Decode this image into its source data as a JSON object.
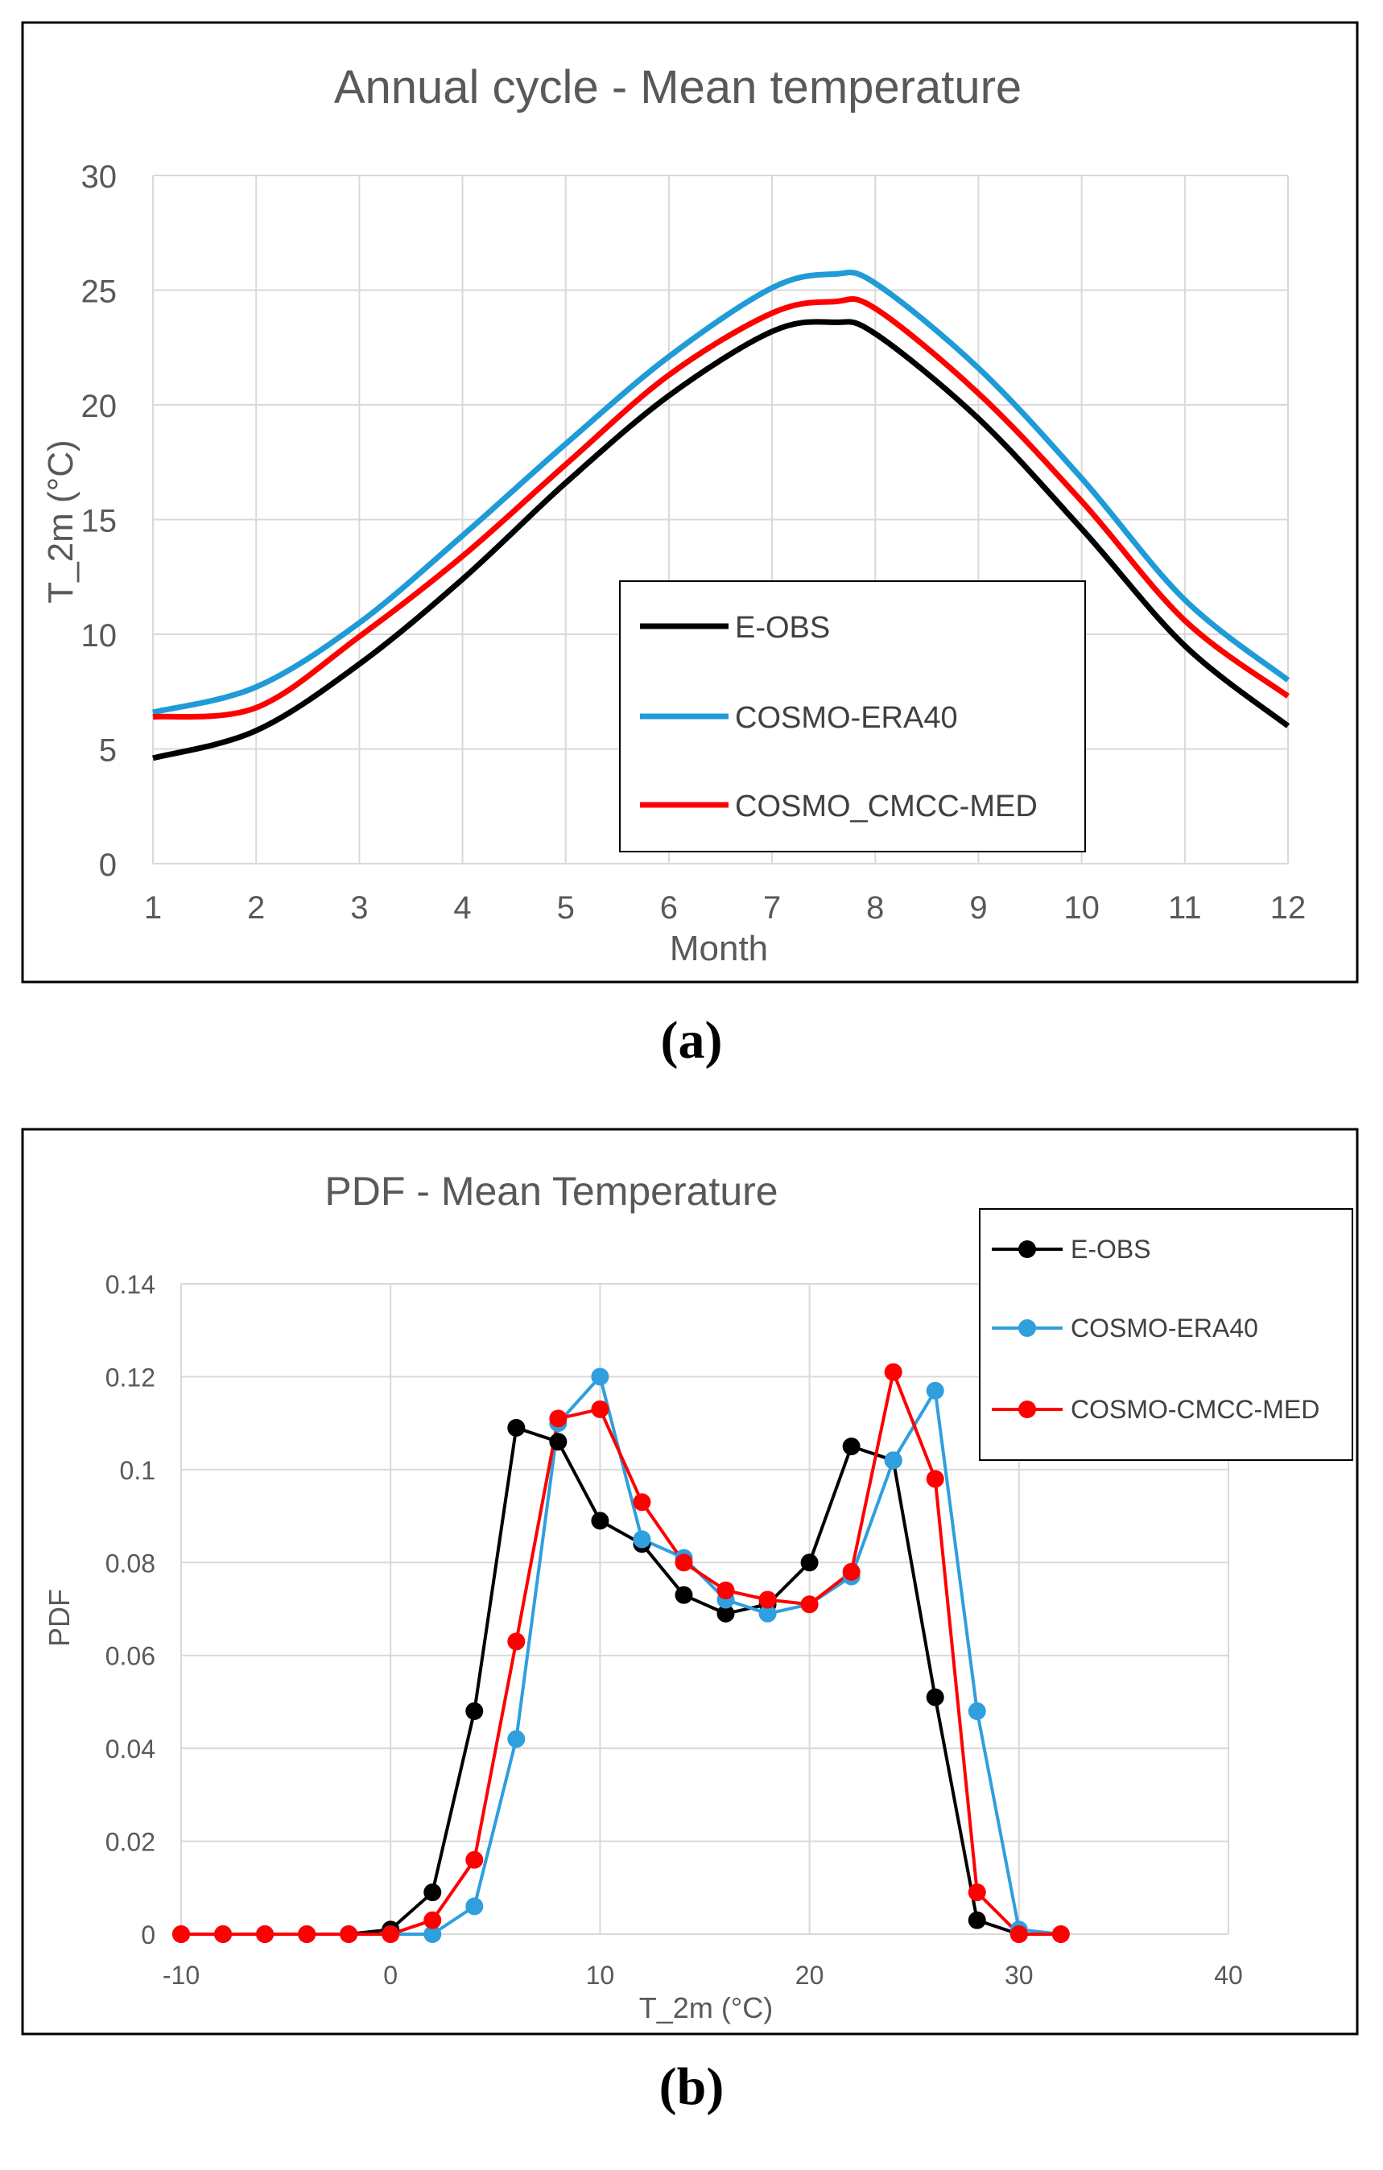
{
  "figure_labels": {
    "a": "(a)",
    "b": "(b)"
  },
  "chart_data": [
    {
      "id": "a",
      "type": "line",
      "title": "Annual cycle - Mean temperature",
      "xlabel": "Month",
      "ylabel": "T_2m (°C)",
      "xlim": [
        1,
        12
      ],
      "ylim": [
        0,
        30
      ],
      "xticks": [
        1,
        2,
        3,
        4,
        5,
        6,
        7,
        8,
        9,
        10,
        11,
        12
      ],
      "yticks": [
        0,
        5,
        10,
        15,
        20,
        25,
        30
      ],
      "grid": true,
      "legend_position": "bottom-right",
      "x": [
        1,
        2,
        3,
        4,
        5,
        6,
        7,
        7.6,
        8,
        9,
        10,
        11,
        12
      ],
      "series": [
        {
          "name": "E-OBS",
          "color": "#000000",
          "values": [
            4.6,
            5.8,
            8.7,
            12.4,
            16.6,
            20.4,
            23.2,
            23.6,
            23.1,
            19.4,
            14.6,
            9.5,
            6.0
          ]
        },
        {
          "name": "COSMO-ERA40",
          "color": "#1f9bd7",
          "values": [
            6.6,
            7.7,
            10.5,
            14.3,
            18.3,
            22.1,
            25.1,
            25.7,
            25.3,
            21.6,
            16.8,
            11.5,
            8.0
          ]
        },
        {
          "name": "COSMO_CMCC-MED",
          "color": "#ff0000",
          "values": [
            6.4,
            6.8,
            9.9,
            13.4,
            17.4,
            21.3,
            24.0,
            24.5,
            24.2,
            20.5,
            15.8,
            10.6,
            7.3
          ]
        }
      ]
    },
    {
      "id": "b",
      "type": "line",
      "title": "PDF - Mean Temperature",
      "xlabel": "T_2m (°C)",
      "ylabel": "PDF",
      "xlim": [
        -10,
        40
      ],
      "ylim": [
        0,
        0.14
      ],
      "xticks": [
        -10,
        0,
        10,
        20,
        30,
        40
      ],
      "yticks": [
        0,
        0.02,
        0.04,
        0.06,
        0.08,
        0.1,
        0.12,
        0.14
      ],
      "grid": true,
      "markers": true,
      "legend_position": "top-right",
      "x": [
        -10,
        -8,
        -6,
        -4,
        -2,
        0,
        2,
        4,
        6,
        8,
        10,
        12,
        14,
        16,
        18,
        20,
        22,
        24,
        26,
        28,
        30,
        32
      ],
      "series": [
        {
          "name": "E-OBS",
          "color": "#000000",
          "values": [
            0.0,
            0.0,
            0.0,
            0.0,
            0.0,
            0.001,
            0.009,
            0.048,
            0.109,
            0.106,
            0.089,
            0.084,
            0.073,
            0.069,
            0.071,
            0.08,
            0.105,
            0.102,
            0.051,
            0.003,
            0.0,
            null
          ]
        },
        {
          "name": "COSMO-ERA40",
          "color": "#2f9fde",
          "values": [
            0.0,
            0.0,
            0.0,
            0.0,
            0.0,
            0.0,
            0.0,
            0.006,
            0.042,
            0.11,
            0.12,
            0.085,
            0.081,
            0.072,
            0.069,
            0.071,
            0.077,
            0.102,
            0.117,
            0.048,
            0.001,
            0.0
          ]
        },
        {
          "name": "COSMO-CMCC-MED",
          "color": "#ff0000",
          "values": [
            0.0,
            0.0,
            0.0,
            0.0,
            0.0,
            0.0,
            0.003,
            0.016,
            0.063,
            0.111,
            0.113,
            0.093,
            0.08,
            0.074,
            0.072,
            0.071,
            0.078,
            0.121,
            0.098,
            0.009,
            0.0,
            0.0
          ]
        }
      ]
    }
  ]
}
